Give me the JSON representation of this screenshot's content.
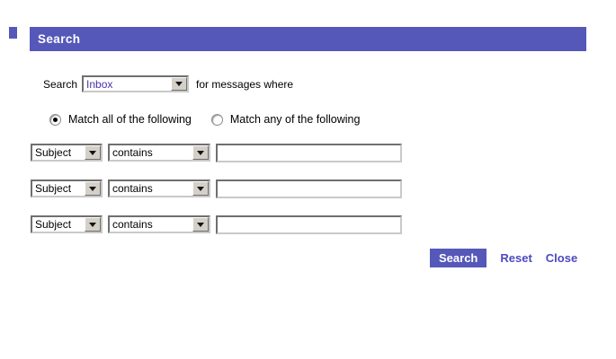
{
  "colors": {
    "accent": "#5558b8",
    "link": "#4d49c0",
    "folder_text": "#4b32a8",
    "combo_button_face": "#d4d0c8"
  },
  "icons": {
    "dropdown_arrow": "triangle-down"
  },
  "header": {
    "title": "Search"
  },
  "scope_row": {
    "label": "Search",
    "folder_select": {
      "value": "Inbox"
    },
    "suffix": "for messages where"
  },
  "match_options": [
    {
      "label": "Match all of the following",
      "selected": true
    },
    {
      "label": "Match any of the following",
      "selected": false
    }
  ],
  "condition_rows": [
    {
      "field": "Subject",
      "operator": "contains",
      "value": ""
    },
    {
      "field": "Subject",
      "operator": "contains",
      "value": ""
    },
    {
      "field": "Subject",
      "operator": "contains",
      "value": ""
    }
  ],
  "actions": {
    "search_label": "Search",
    "reset_label": "Reset",
    "close_label": "Close"
  }
}
